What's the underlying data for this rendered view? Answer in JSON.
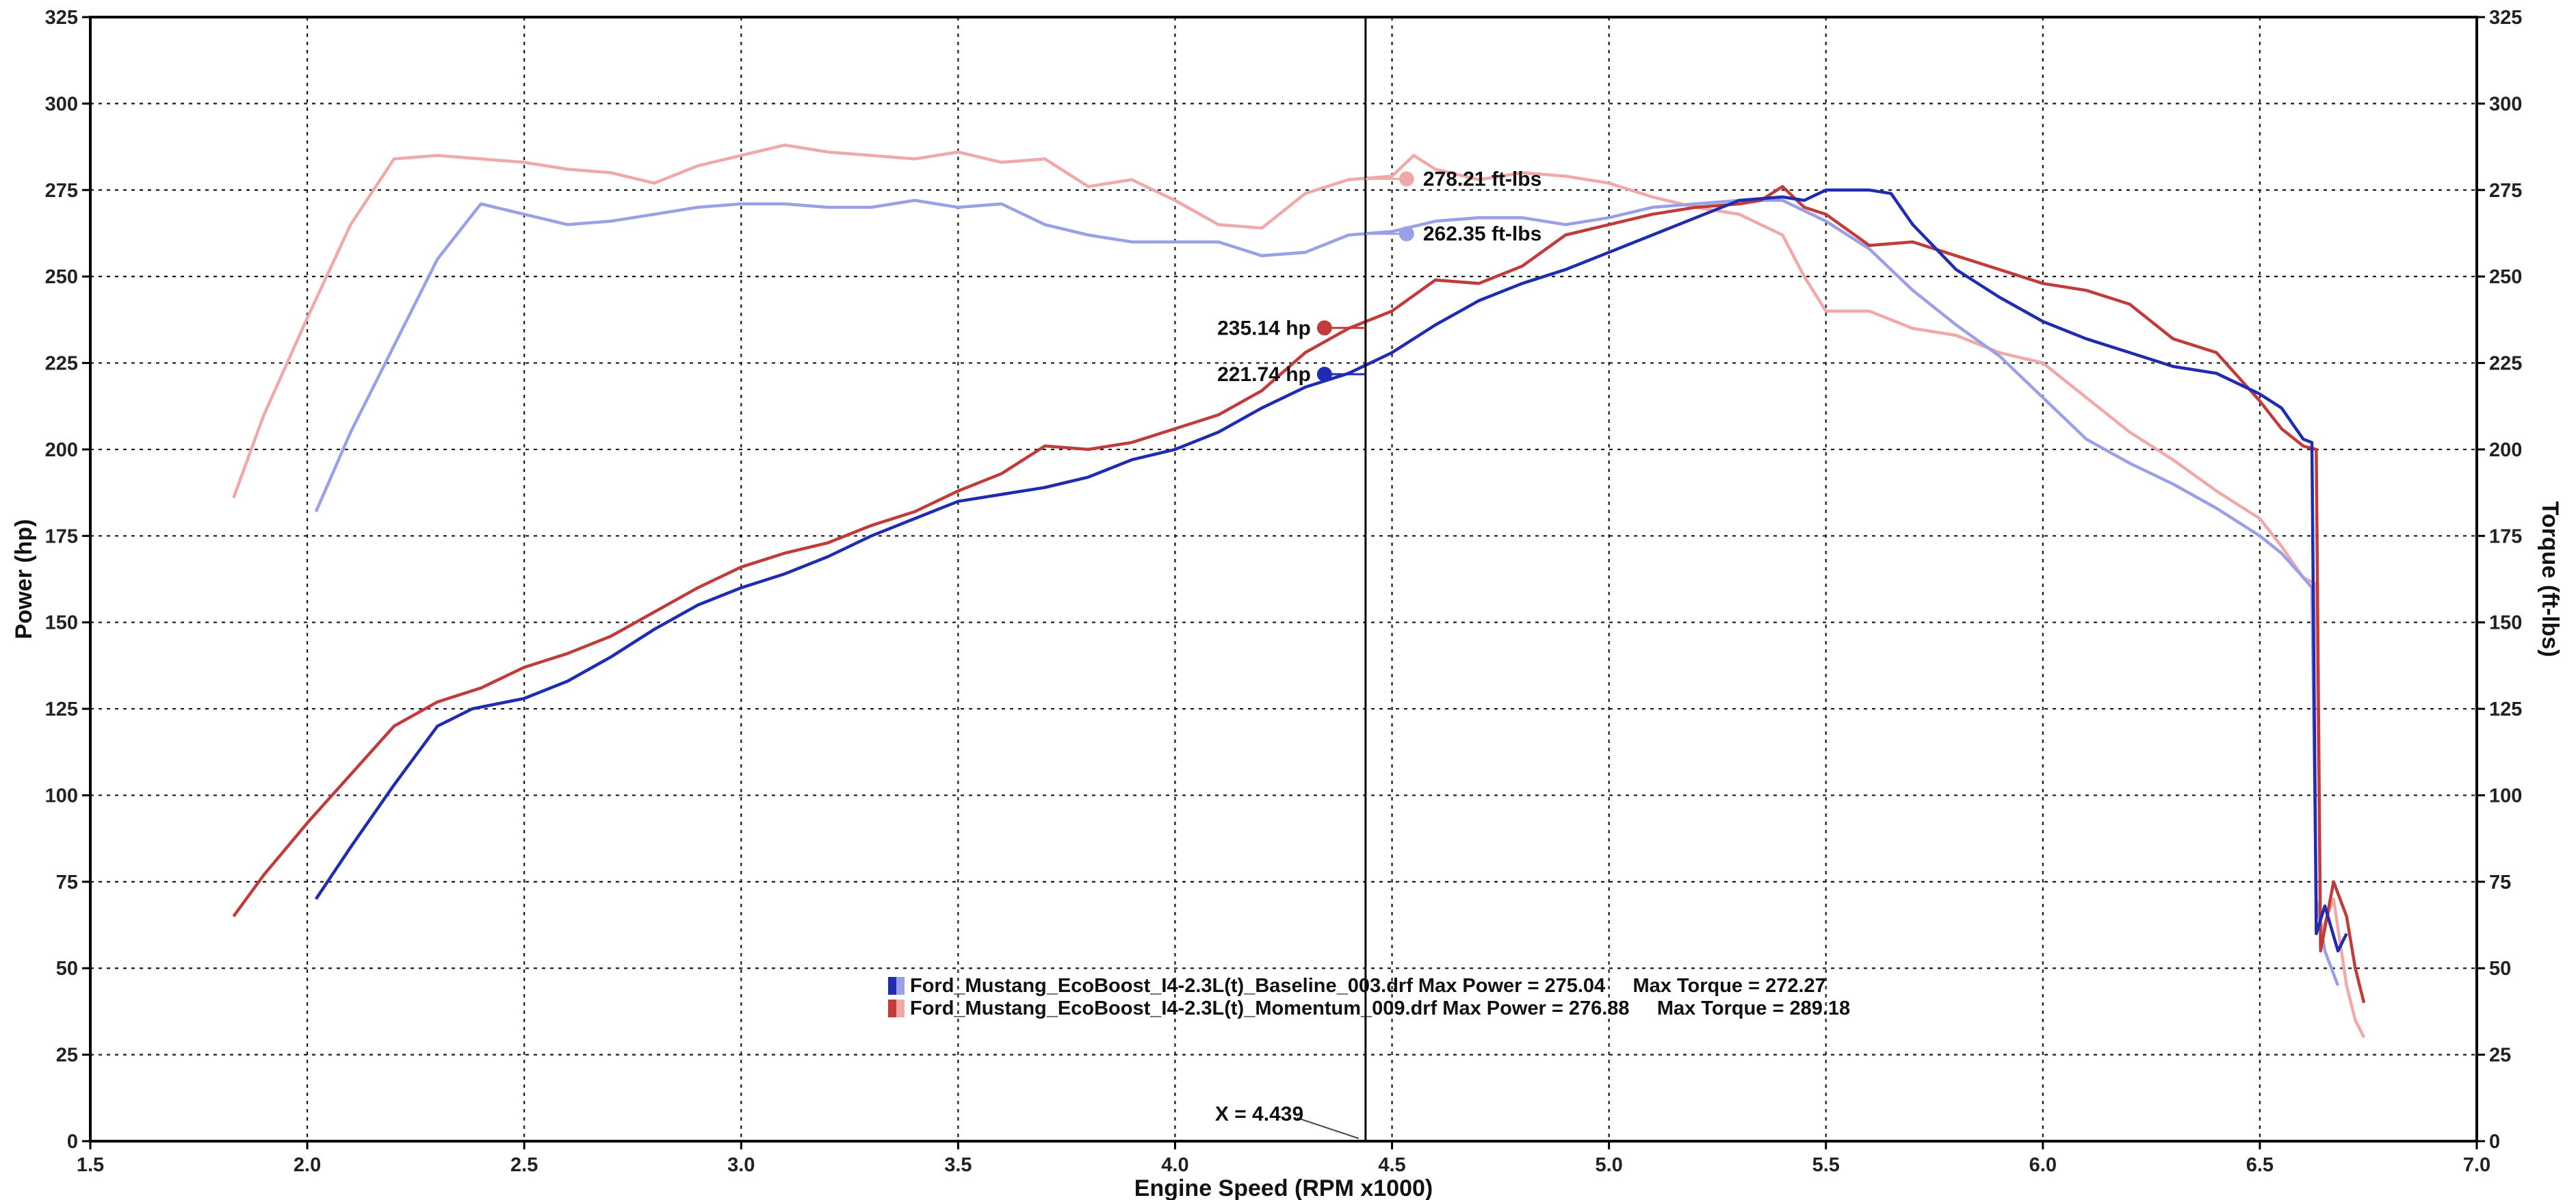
{
  "chart_data": {
    "type": "line",
    "xlabel": "Engine Speed (RPM x1000)",
    "ylabel_left": "Power (hp)",
    "ylabel_right": "Torque (ft-lbs)",
    "xlim": [
      1.5,
      7.0
    ],
    "ylim": [
      0,
      325
    ],
    "x_ticks": [
      "1.5",
      "2.0",
      "2.5",
      "3.0",
      "3.5",
      "4.0",
      "4.5",
      "5.0",
      "5.5",
      "6.0",
      "6.5",
      "7.0"
    ],
    "y_ticks": [
      "0",
      "25",
      "50",
      "75",
      "100",
      "125",
      "150",
      "175",
      "200",
      "225",
      "250",
      "275",
      "300",
      "325"
    ],
    "grid": true,
    "cursor": {
      "x": 4.439,
      "label": "X = 4.439"
    },
    "point_labels": [
      {
        "text": "278.21 ft-lbs",
        "x": 4.44,
        "y": 278.21,
        "series": "momentum_torque"
      },
      {
        "text": "262.35 ft-lbs",
        "x": 4.44,
        "y": 262.35,
        "series": "baseline_torque"
      },
      {
        "text": "235.14 hp",
        "x": 4.44,
        "y": 235.14,
        "series": "momentum_power"
      },
      {
        "text": "221.74 hp",
        "x": 4.44,
        "y": 221.74,
        "series": "baseline_power"
      }
    ],
    "legend": [
      {
        "text": "Ford_Mustang_EcoBoost_I4-2.3L(t)_Baseline_003.drf Max Power = 275.04     Max Torque = 272.27",
        "color_a": "#1f2bb0",
        "color_b": "#9aa0e8"
      },
      {
        "text": "Ford_Mustang_EcoBoost_I4-2.3L(t)_Momentum_009.drf Max Power = 276.88     Max Torque = 289.18",
        "color_a": "#c23b3b",
        "color_b": "#f0a8a8"
      }
    ],
    "series": [
      {
        "id": "baseline_power",
        "axis": "left",
        "color": "#1f2bb0",
        "x": [
          2.02,
          2.1,
          2.2,
          2.3,
          2.38,
          2.5,
          2.6,
          2.7,
          2.8,
          2.9,
          3.0,
          3.1,
          3.2,
          3.3,
          3.4,
          3.5,
          3.6,
          3.7,
          3.8,
          3.9,
          4.0,
          4.1,
          4.2,
          4.3,
          4.4,
          4.5,
          4.6,
          4.7,
          4.8,
          4.9,
          5.0,
          5.1,
          5.2,
          5.3,
          5.4,
          5.45,
          5.5,
          5.6,
          5.65,
          5.7,
          5.8,
          5.9,
          6.0,
          6.1,
          6.2,
          6.3,
          6.4,
          6.5,
          6.55,
          6.6,
          6.62,
          6.63,
          6.65,
          6.68,
          6.7
        ],
        "y": [
          70,
          85,
          103,
          120,
          125,
          128,
          133,
          140,
          148,
          155,
          160,
          164,
          169,
          175,
          180,
          185,
          187,
          189,
          192,
          197,
          200,
          205,
          212,
          218,
          222,
          228,
          236,
          243,
          248,
          252,
          257,
          262,
          267,
          272,
          273,
          272,
          275,
          275,
          274,
          265,
          252,
          244,
          237,
          232,
          228,
          224,
          222,
          216,
          212,
          203,
          202,
          60,
          68,
          55,
          60
        ]
      },
      {
        "id": "momentum_power",
        "axis": "left",
        "color": "#c23b3b",
        "x": [
          1.83,
          1.9,
          2.0,
          2.1,
          2.2,
          2.3,
          2.4,
          2.5,
          2.6,
          2.7,
          2.8,
          2.9,
          3.0,
          3.1,
          3.2,
          3.3,
          3.4,
          3.5,
          3.6,
          3.7,
          3.8,
          3.9,
          4.0,
          4.1,
          4.2,
          4.3,
          4.4,
          4.5,
          4.6,
          4.7,
          4.8,
          4.9,
          5.0,
          5.1,
          5.2,
          5.3,
          5.35,
          5.4,
          5.45,
          5.5,
          5.6,
          5.7,
          5.8,
          5.9,
          6.0,
          6.1,
          6.2,
          6.3,
          6.4,
          6.5,
          6.55,
          6.6,
          6.63,
          6.64,
          6.67,
          6.7,
          6.72,
          6.74
        ],
        "y": [
          65,
          77,
          92,
          106,
          120,
          127,
          131,
          137,
          141,
          146,
          153,
          160,
          166,
          170,
          173,
          178,
          182,
          188,
          193,
          201,
          200,
          202,
          206,
          210,
          217,
          228,
          235,
          240,
          249,
          248,
          253,
          262,
          265,
          268,
          270,
          271,
          272,
          276,
          270,
          268,
          259,
          260,
          256,
          252,
          248,
          246,
          242,
          232,
          228,
          214,
          206,
          201,
          200,
          55,
          75,
          65,
          50,
          40
        ]
      },
      {
        "id": "baseline_torque",
        "axis": "right",
        "color": "#9aa0e8",
        "x": [
          2.02,
          2.1,
          2.2,
          2.3,
          2.4,
          2.5,
          2.6,
          2.7,
          2.8,
          2.9,
          3.0,
          3.1,
          3.2,
          3.3,
          3.4,
          3.5,
          3.6,
          3.7,
          3.8,
          3.9,
          4.0,
          4.1,
          4.2,
          4.3,
          4.4,
          4.5,
          4.6,
          4.7,
          4.8,
          4.9,
          5.0,
          5.1,
          5.2,
          5.3,
          5.4,
          5.5,
          5.6,
          5.7,
          5.8,
          5.9,
          6.0,
          6.1,
          6.2,
          6.3,
          6.4,
          6.5,
          6.55,
          6.6,
          6.62,
          6.63,
          6.65,
          6.68
        ],
        "y": [
          182,
          205,
          230,
          255,
          271,
          268,
          265,
          266,
          268,
          270,
          271,
          271,
          270,
          270,
          272,
          270,
          271,
          265,
          262,
          260,
          260,
          260,
          256,
          257,
          262,
          263,
          266,
          267,
          267,
          265,
          267,
          270,
          271,
          272,
          272,
          266,
          258,
          246,
          236,
          227,
          215,
          203,
          196,
          190,
          183,
          175,
          170,
          163,
          160,
          70,
          55,
          45
        ]
      },
      {
        "id": "momentum_torque",
        "axis": "right",
        "color": "#f0a8a8",
        "x": [
          1.83,
          1.9,
          2.0,
          2.1,
          2.2,
          2.3,
          2.4,
          2.5,
          2.6,
          2.7,
          2.8,
          2.9,
          3.0,
          3.1,
          3.2,
          3.3,
          3.4,
          3.5,
          3.6,
          3.7,
          3.8,
          3.9,
          4.0,
          4.1,
          4.2,
          4.3,
          4.4,
          4.5,
          4.55,
          4.6,
          4.7,
          4.8,
          4.9,
          5.0,
          5.1,
          5.2,
          5.3,
          5.4,
          5.45,
          5.5,
          5.6,
          5.7,
          5.8,
          5.9,
          6.0,
          6.1,
          6.2,
          6.3,
          6.4,
          6.5,
          6.55,
          6.6,
          6.63,
          6.64,
          6.67,
          6.7,
          6.72,
          6.74
        ],
        "y": [
          186,
          210,
          238,
          265,
          284,
          285,
          284,
          283,
          281,
          280,
          277,
          282,
          285,
          288,
          286,
          285,
          284,
          286,
          283,
          284,
          276,
          278,
          272,
          265,
          264,
          274,
          278,
          279,
          285,
          281,
          278,
          280,
          279,
          277,
          273,
          270,
          268,
          262,
          250,
          240,
          240,
          235,
          233,
          228,
          225,
          215,
          205,
          197,
          188,
          180,
          172,
          163,
          161,
          60,
          70,
          45,
          35,
          30
        ]
      }
    ]
  }
}
